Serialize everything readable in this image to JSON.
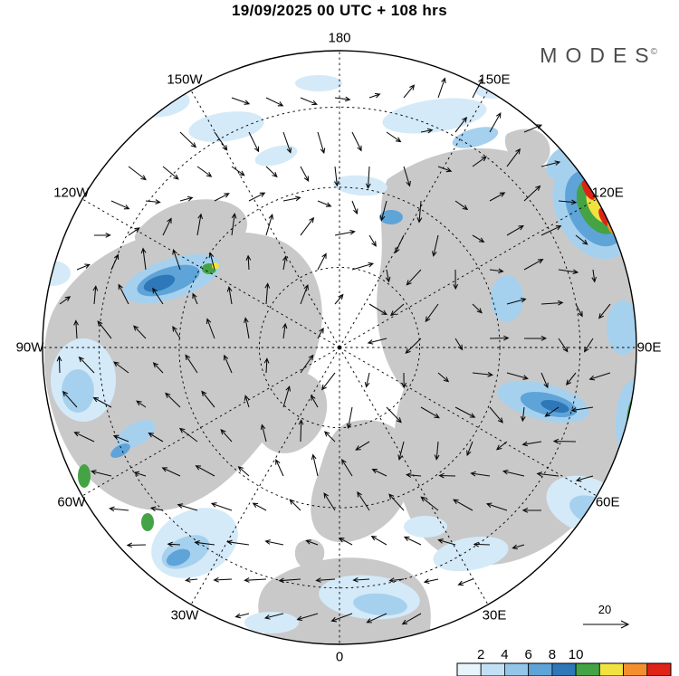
{
  "header": {
    "title": "19/09/2025  00 UTC  + 108 hrs"
  },
  "brand": {
    "name": "MODES",
    "mark": "©"
  },
  "map": {
    "background": "#ffffff",
    "land_color": "#c9c9c9",
    "graticule_color": "#000000",
    "longitude_labels": [
      {
        "text": "180",
        "angle": 0
      },
      {
        "text": "150E",
        "angle": 30
      },
      {
        "text": "120E",
        "angle": 60
      },
      {
        "text": "90E",
        "angle": 90
      },
      {
        "text": "60E",
        "angle": 120
      },
      {
        "text": "30E",
        "angle": 150
      },
      {
        "text": "0",
        "angle": 180
      },
      {
        "text": "30W",
        "angle": 210
      },
      {
        "text": "60W",
        "angle": 240
      },
      {
        "text": "90W",
        "angle": 270
      },
      {
        "text": "120W",
        "angle": 300
      },
      {
        "text": "150W",
        "angle": 330
      }
    ],
    "palette": {
      "blue1": "#d4eaf8",
      "blue2": "#a6d1ee",
      "blue3": "#5fa4d8",
      "blue4": "#2e77b8",
      "green": "#44a344",
      "yellow": "#f2e23f",
      "orange": "#f58f2e",
      "red": "#df2317"
    }
  },
  "legend": {
    "ref_arrow_label": "20"
  },
  "colorbar": {
    "ticks": [
      "2",
      "4",
      "6",
      "8",
      "10"
    ],
    "colors": [
      "#e8f4fb",
      "#c2e0f4",
      "#93c6e8",
      "#5fa4d8",
      "#2e77b8",
      "#44a344",
      "#f2e23f",
      "#f58f2e",
      "#df2317"
    ]
  }
}
